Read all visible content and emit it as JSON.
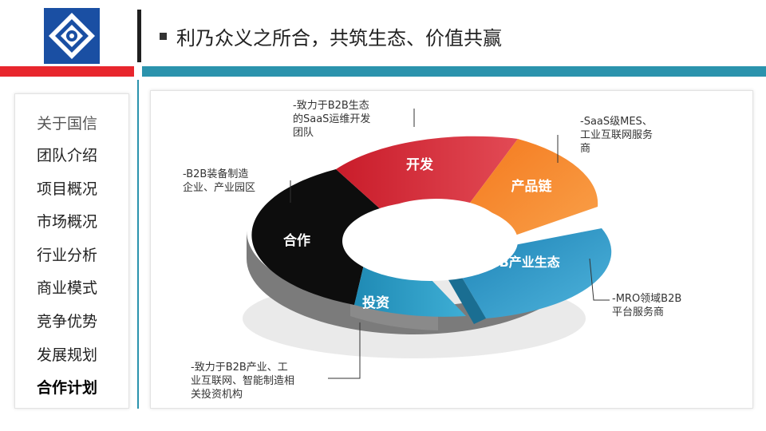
{
  "header": {
    "title": "利乃众义之所合，共筑生态、价值共赢"
  },
  "colors": {
    "accent_red": "#e8262d",
    "accent_blue": "#2b93ad",
    "segment_kaifa": "#d82a36",
    "segment_chanpinlian": "#f6862b",
    "segment_b2b": "#2a8fbe",
    "segment_touzi": "#2c9ec4",
    "segment_hezuo": "#0d0d0d"
  },
  "sidebar": {
    "items": [
      {
        "label": "关于国信"
      },
      {
        "label": "团队介绍"
      },
      {
        "label": "项目概况"
      },
      {
        "label": "市场概况"
      },
      {
        "label": "行业分析"
      },
      {
        "label": "商业模式"
      },
      {
        "label": "竞争优势"
      },
      {
        "label": "发展规划"
      },
      {
        "label": "合作计划",
        "active": true
      }
    ]
  },
  "ring": {
    "segments": [
      {
        "label": "开发"
      },
      {
        "label": "产品链"
      },
      {
        "label": "B2B产业生态"
      },
      {
        "label": "投资"
      },
      {
        "label": "合作"
      }
    ]
  },
  "notes": {
    "kaifa": [
      "-致力于B2B生态",
      "的SaaS运维开发",
      "团队"
    ],
    "chanpinlian": [
      "-SaaS级MES、",
      "工业互联网服务",
      "商"
    ],
    "b2b": [
      "-MRO领域B2B",
      "平台服务商"
    ],
    "touzi": [
      "-致力于B2B产业、工",
      "业互联网、智能制造相",
      "关投资机构"
    ],
    "hezuo": [
      "-B2B装备制造",
      "企业、产业园区"
    ]
  }
}
